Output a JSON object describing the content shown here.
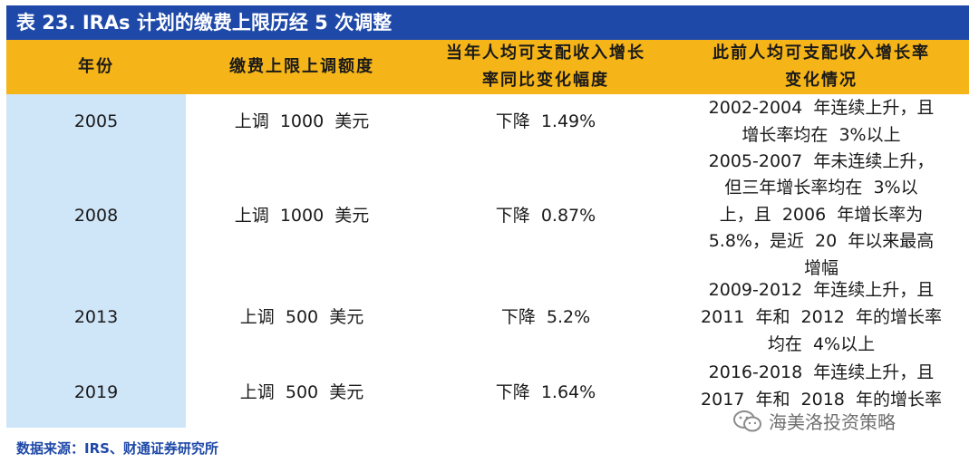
{
  "title": "表 23. IRAs 计划的缴费上限历经 5 次调整",
  "header": {
    "col1": "年份",
    "col2": "缴费上限上调额度",
    "col3": "当年人均可支配收入增长\n率同比变化幅度",
    "col4": "此前人均可支配收入增长率\n变化情况"
  },
  "rows": [
    {
      "year": "2005",
      "adjust": "上调  1000  美元",
      "change": "下降  1.49%",
      "prior": "2002-2004  年连续上升，且\n增长率均在  3%以上"
    },
    {
      "year": "2008",
      "adjust": "上调  1000  美元",
      "change": "下降  0.87%",
      "prior": "2005-2007  年未连续上升，\n但三年增长率均在  3%以\n上，且  2006  年增长率为\n5.8%，是近  20  年以来最高\n增幅"
    },
    {
      "year": "2013",
      "adjust": "上调  500  美元",
      "change": "下降  5.2%",
      "prior": "2009-2012  年连续上升，且\n2011  年和  2012  年的增长率\n均在  4%以上"
    },
    {
      "year": "2019",
      "adjust": "上调  500  美元",
      "change": "下降  1.64%",
      "prior": "2016-2018  年连续上升，且\n2017  年和  2018  年的增长率"
    }
  ],
  "watermark": "海美洛投资策略",
  "source": "数据来源：IRS、财通证券研究所",
  "colors": {
    "title_bg": "#1f49a8",
    "header_bg": "#f5b418",
    "year_col_bg": "#cfe5f8",
    "source_text": "#1f49a8"
  }
}
